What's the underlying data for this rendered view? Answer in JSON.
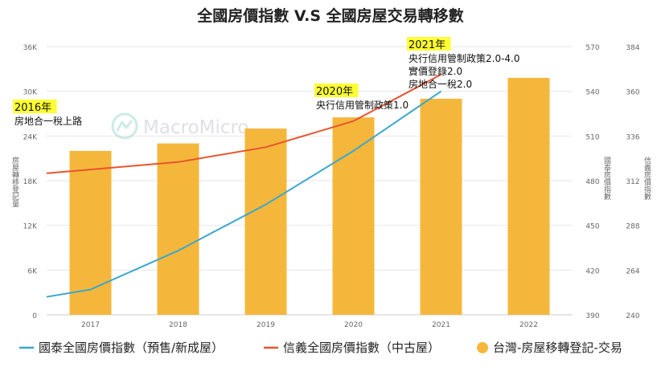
{
  "chart_data": {
    "type": "bar+line",
    "title": "全國房價指數 V.S 全國房屋交易轉移數",
    "categories": [
      "2017",
      "2018",
      "2019",
      "2020",
      "2021",
      "2022"
    ],
    "axes": {
      "left": {
        "label": "房屋轉移登記量",
        "range": [
          0,
          36000
        ],
        "ticks": [
          "0",
          "6K",
          "12K",
          "18K",
          "24K",
          "30K",
          "36K"
        ]
      },
      "right1": {
        "label": "國泰房價指數",
        "range": [
          390,
          570
        ],
        "ticks": [
          "390",
          "420",
          "450",
          "480",
          "510",
          "540",
          "570"
        ]
      },
      "right2": {
        "label": "信義房價指數",
        "range": [
          240,
          384
        ],
        "ticks": [
          "240",
          "264",
          "288",
          "312",
          "336",
          "360",
          "384"
        ]
      }
    },
    "series": [
      {
        "name": "國泰全國房價指數（預售/新成屋）",
        "kind": "line",
        "axis": "right1",
        "color": "#3aa6cf",
        "points": [
          [
            2016.5,
            402
          ],
          [
            2017.0,
            407
          ],
          [
            2018.0,
            433
          ],
          [
            2019.0,
            464
          ],
          [
            2020.0,
            500
          ],
          [
            2021.0,
            540
          ]
        ]
      },
      {
        "name": "信義全國房價指數（中古屋）",
        "kind": "line",
        "axis": "right2",
        "color": "#e8542e",
        "points": [
          [
            2016.5,
            316
          ],
          [
            2017.0,
            318
          ],
          [
            2018.0,
            322
          ],
          [
            2019.0,
            330
          ],
          [
            2020.0,
            344
          ],
          [
            2021.0,
            369
          ]
        ]
      },
      {
        "name": "台灣-房屋移轉登記-交易",
        "kind": "bar",
        "axis": "left",
        "color": "#f5b73b",
        "values": [
          22000,
          23000,
          25000,
          26500,
          29000,
          31800
        ]
      }
    ],
    "annotations": [
      {
        "year": "2016年",
        "lines": [
          "房地合一稅上路"
        ]
      },
      {
        "year": "2020年",
        "lines": [
          "央行信用管制政策1.0"
        ]
      },
      {
        "year": "2021年",
        "lines": [
          "央行信用管制政策2.0-4.0",
          "實價登錄2.0",
          "房地合一稅2.0"
        ]
      }
    ],
    "watermark": "MacroMicro",
    "grid": true,
    "legend_position": "bottom"
  }
}
